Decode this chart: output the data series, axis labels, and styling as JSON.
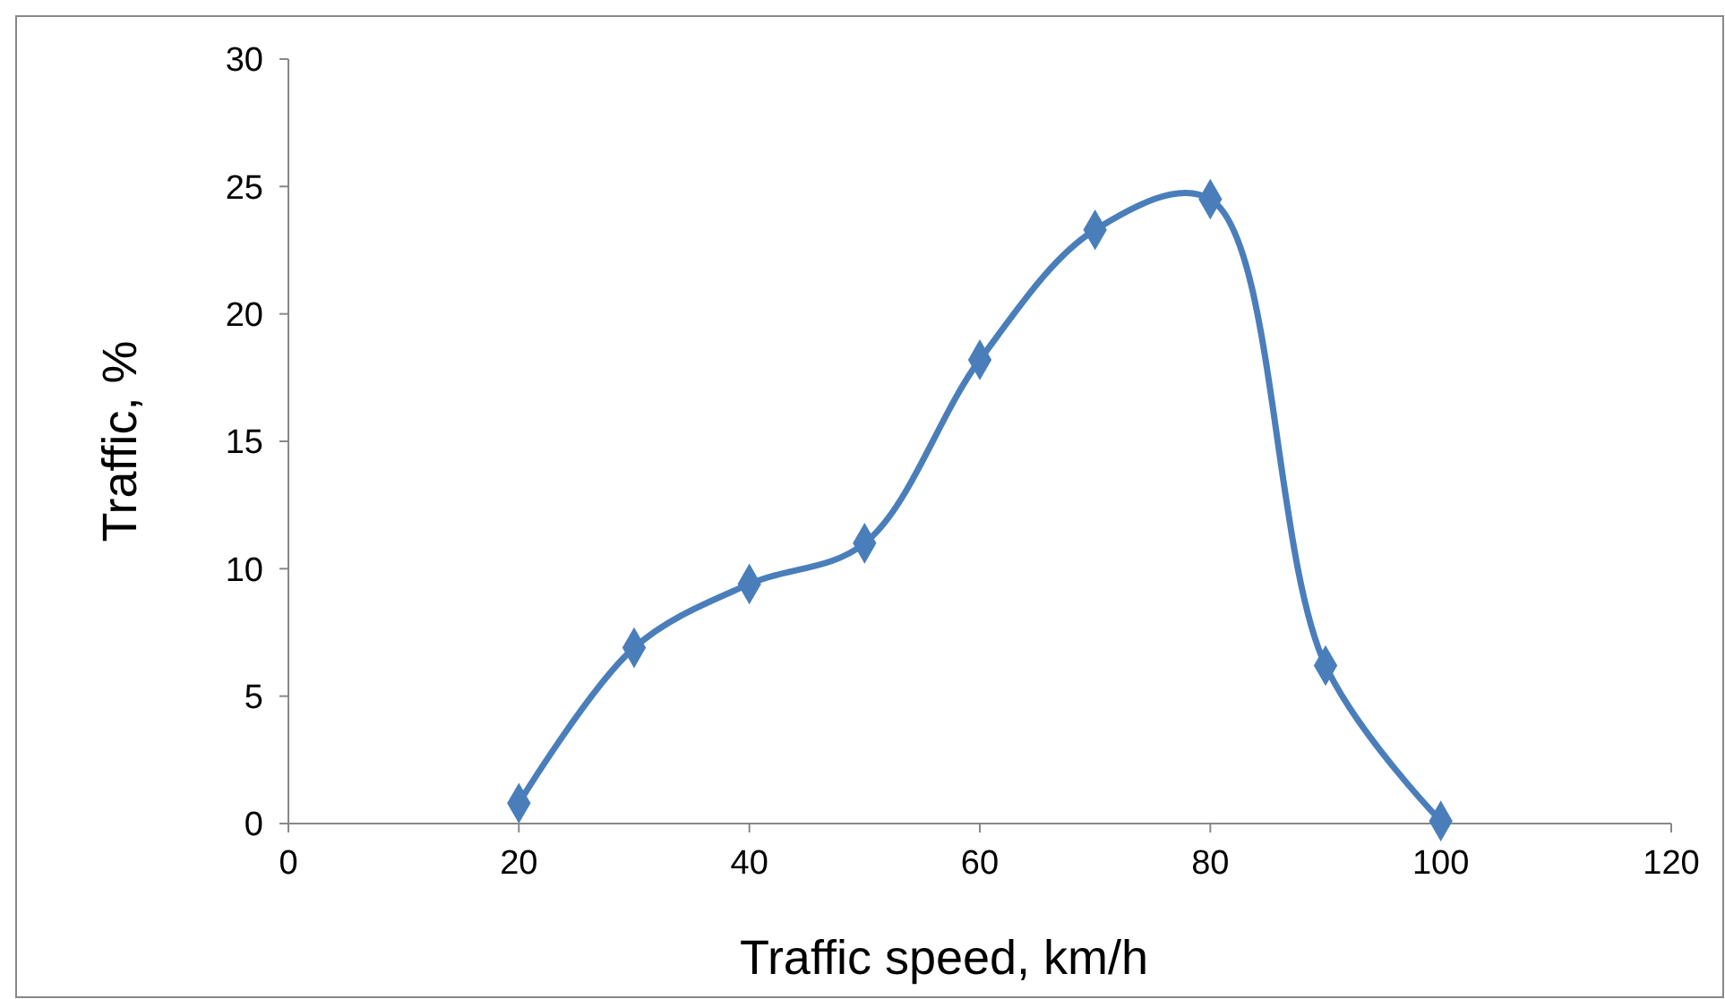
{
  "chart_data": {
    "type": "line",
    "xlabel": "Traffic speed, km/h",
    "ylabel": "Traffic, %",
    "x": [
      20,
      30,
      40,
      50,
      60,
      70,
      80,
      90,
      100
    ],
    "series": [
      {
        "color": "#4a7ebb",
        "values": [
          0.8,
          6.9,
          9.4,
          11.0,
          18.2,
          23.3,
          24.5,
          6.2,
          0.1
        ]
      }
    ],
    "xlim": [
      0,
      120
    ],
    "xticks": [
      0,
      20,
      40,
      60,
      80,
      100,
      120
    ],
    "ylim": [
      0,
      30
    ],
    "yticks": [
      0,
      5,
      10,
      15,
      20,
      25,
      30
    ],
    "marker": "diamond",
    "line_style": "solid"
  }
}
